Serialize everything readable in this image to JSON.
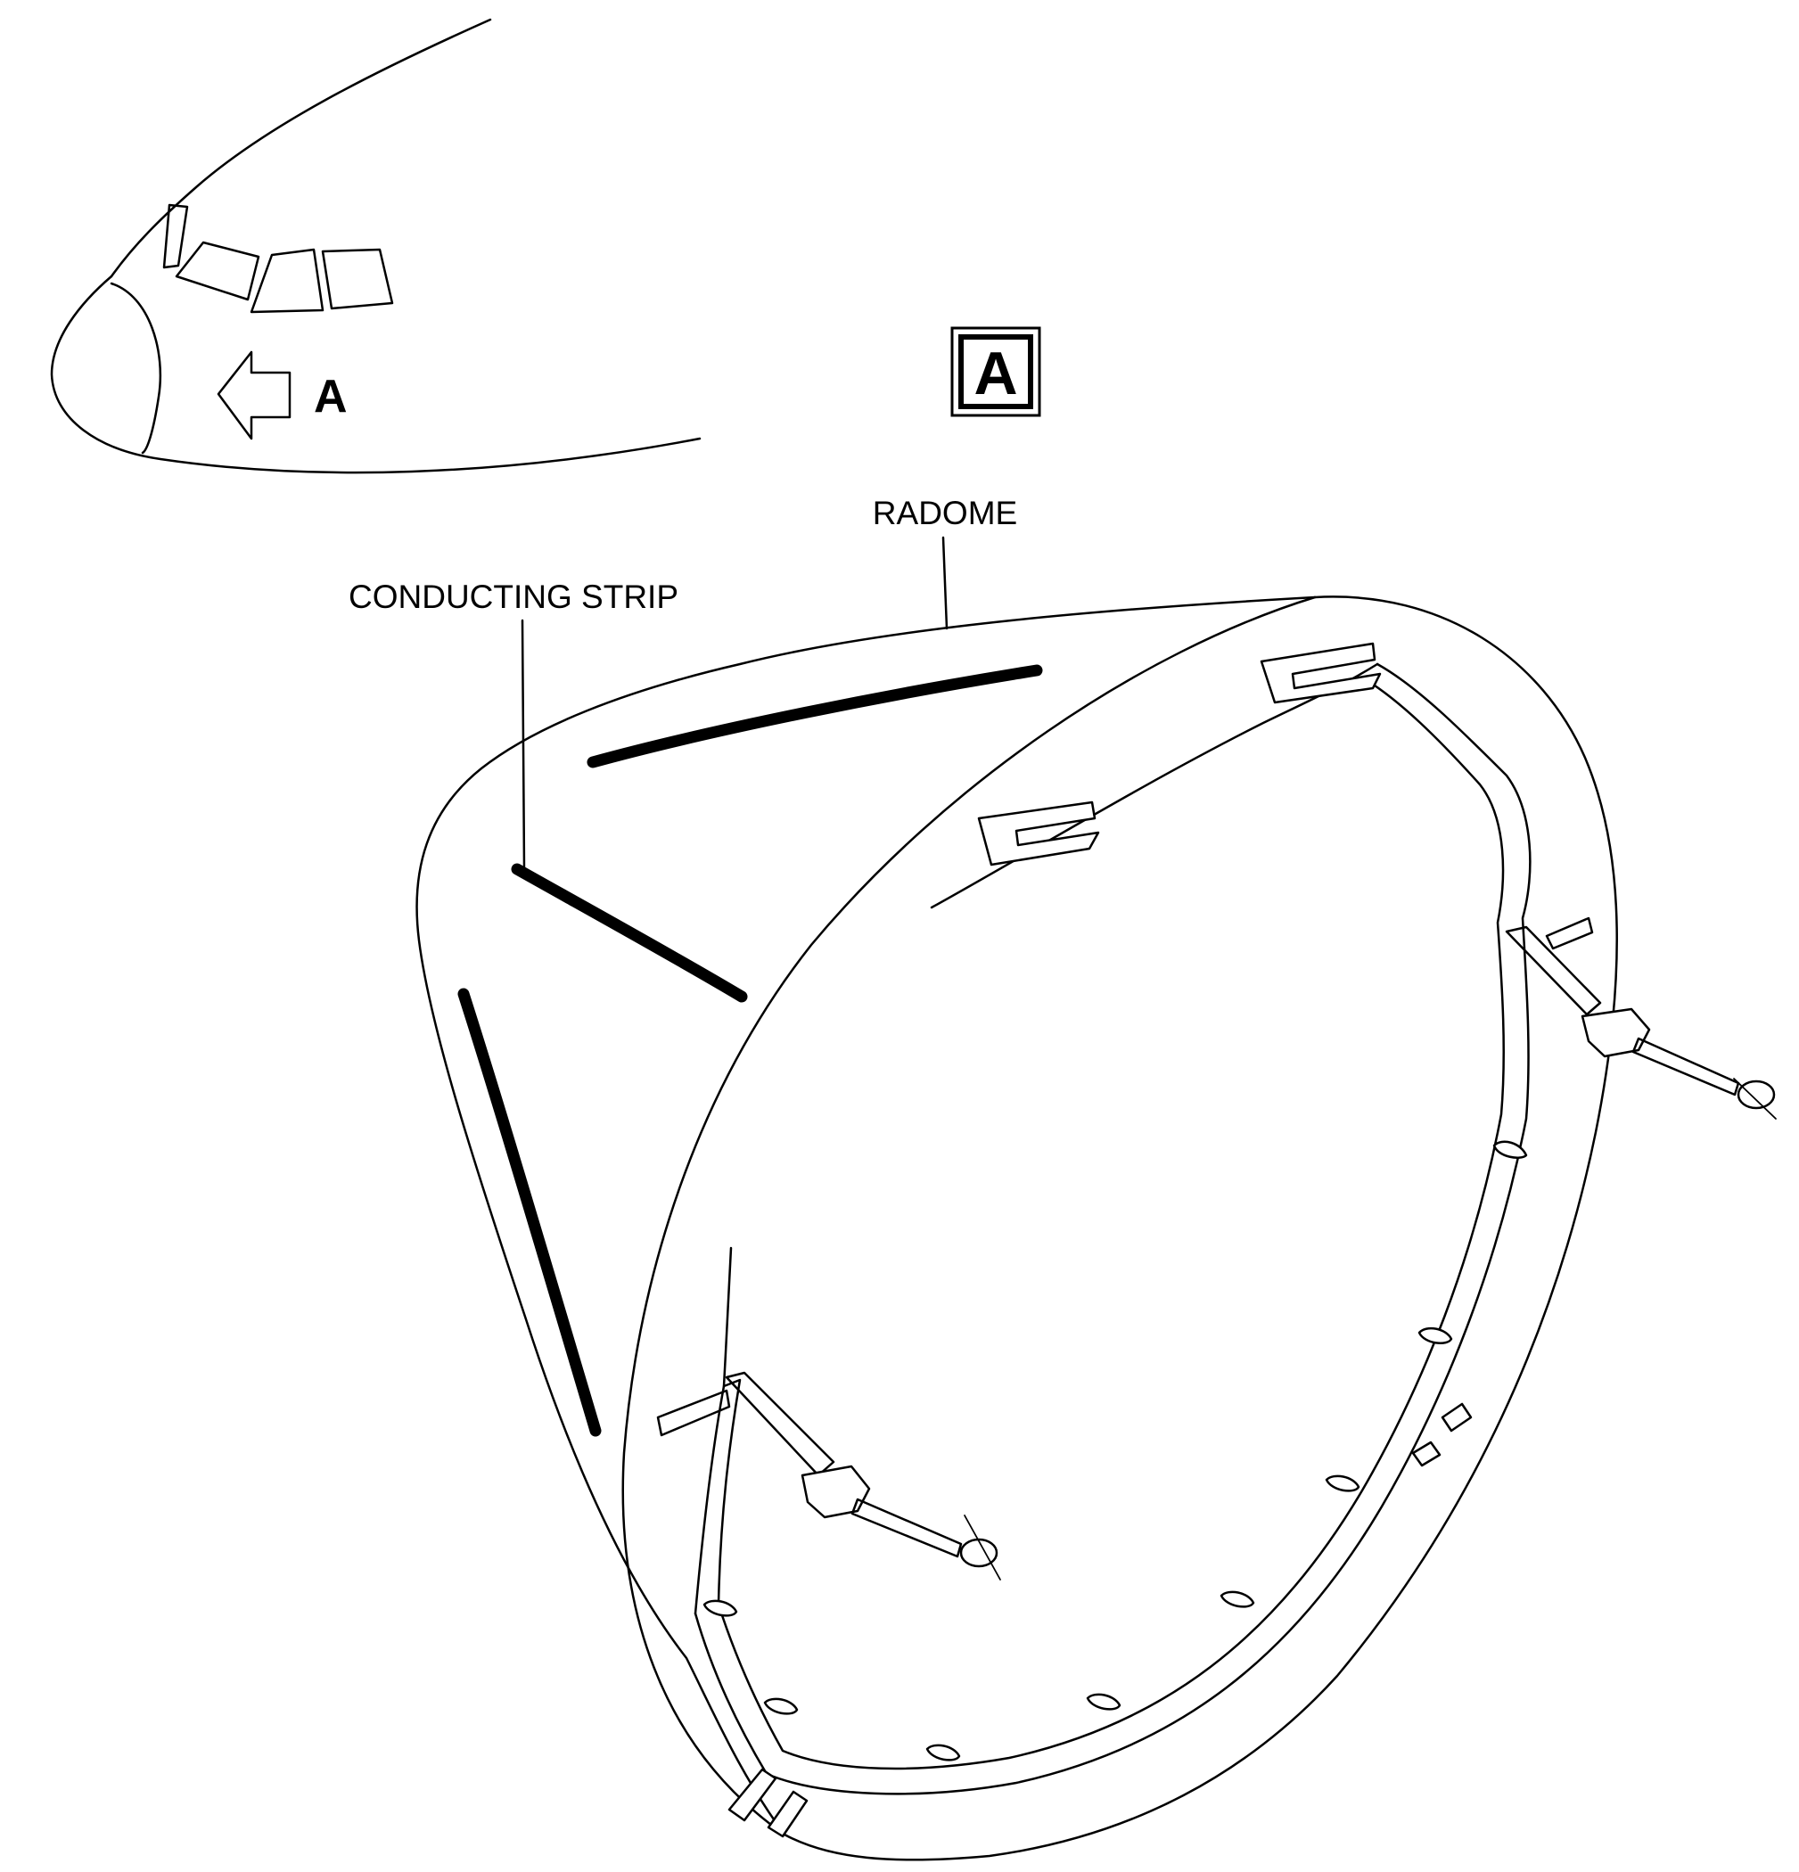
{
  "view_reference": {
    "letter": "A"
  },
  "view_title": {
    "letter": "A"
  },
  "labels": {
    "radome": "RADOME",
    "conducting_strip": "CONDUCTING STRIP"
  },
  "colors": {
    "ink": "#000000",
    "paper": "#ffffff"
  },
  "icons": {
    "view_arrow": "left-arrow-icon"
  }
}
